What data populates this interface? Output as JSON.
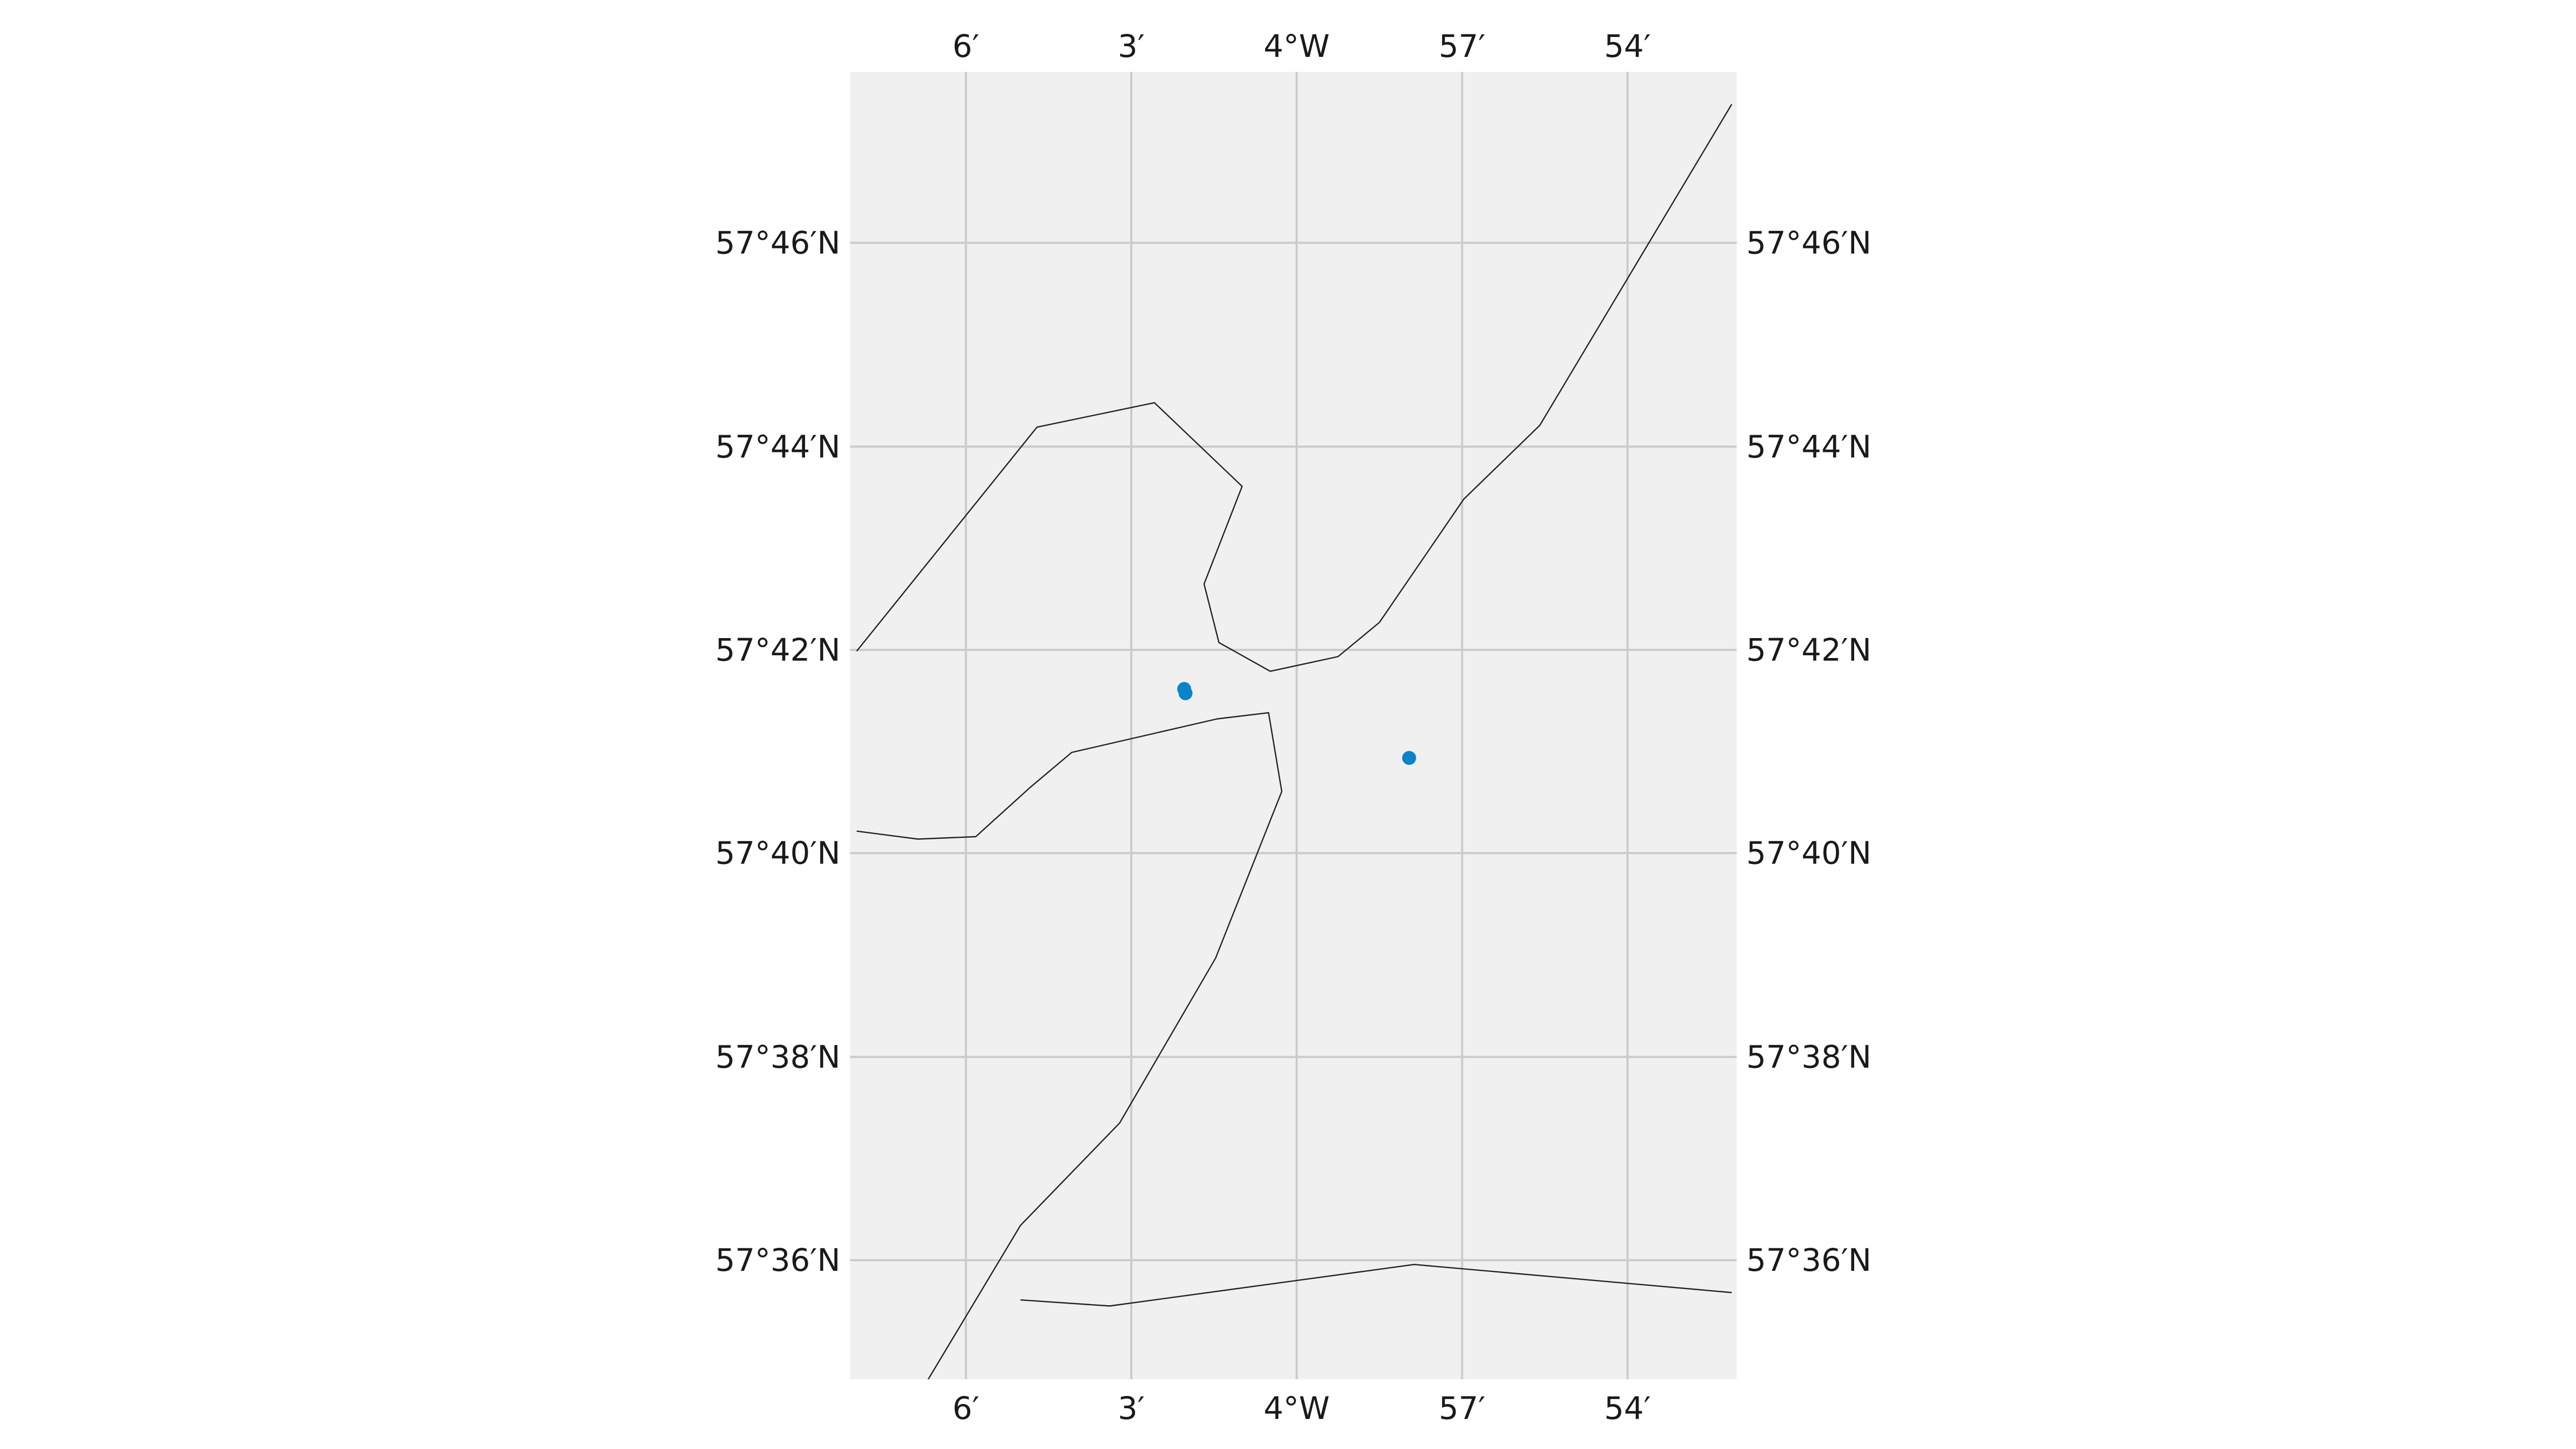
{
  "map": {
    "background_color": "#f0f0f0",
    "grid": true,
    "grid_color": "#cbcbcb",
    "coastline_color": "#222222",
    "point_color": "#0a84c8",
    "lon_ticks": [
      {
        "value": -4.1,
        "label": "6′"
      },
      {
        "value": -4.05,
        "label": "3′"
      },
      {
        "value": -4.0,
        "label": "4°W"
      },
      {
        "value": -3.95,
        "label": "57′"
      },
      {
        "value": -3.9,
        "label": "54′"
      }
    ],
    "lat_ticks": [
      {
        "value": 57.7667,
        "label": "57°46′N"
      },
      {
        "value": 57.7333,
        "label": "57°44′N"
      },
      {
        "value": 57.7,
        "label": "57°42′N"
      },
      {
        "value": 57.6667,
        "label": "57°40′N"
      },
      {
        "value": 57.6333,
        "label": "57°38′N"
      },
      {
        "value": 57.6,
        "label": "57°36′N"
      }
    ],
    "extent": {
      "lon_min": -4.135,
      "lon_max": -3.867,
      "lat_min": 57.5805,
      "lat_max": 57.7947
    },
    "points": [
      {
        "lon": -4.034,
        "lat": 57.6936
      },
      {
        "lon": -4.0336,
        "lat": 57.6929
      },
      {
        "lon": -3.966,
        "lat": 57.6823
      }
    ],
    "coastlines": [
      [
        [
          -4.133,
          57.6998
        ],
        [
          -4.0785,
          57.7365
        ],
        [
          -4.043,
          57.7405
        ],
        [
          -4.0165,
          57.7268
        ],
        [
          -4.028,
          57.7108
        ],
        [
          -4.0235,
          57.7012
        ],
        [
          -4.008,
          57.6965
        ],
        [
          -3.9875,
          57.6989
        ],
        [
          -3.975,
          57.7045
        ],
        [
          -3.9495,
          57.7247
        ],
        [
          -3.9265,
          57.7368
        ],
        [
          -3.8685,
          57.7894
        ]
      ],
      [
        [
          -4.133,
          57.6703
        ],
        [
          -4.1145,
          57.669
        ],
        [
          -4.097,
          57.6694
        ],
        [
          -4.0805,
          57.6775
        ],
        [
          -4.068,
          57.6832
        ],
        [
          -4.024,
          57.6887
        ],
        [
          -4.0085,
          57.6897
        ],
        [
          -4.0045,
          57.6768
        ],
        [
          -4.0245,
          57.6495
        ],
        [
          -4.0535,
          57.6225
        ],
        [
          -4.0835,
          57.6057
        ],
        [
          -4.118,
          57.5745
        ],
        [
          -4.1145,
          57.5705
        ],
        [
          -4.1065,
          57.5605
        ]
      ],
      [
        [
          -4.0835,
          57.5935
        ],
        [
          -4.0565,
          57.5925
        ],
        [
          -3.9645,
          57.5993
        ],
        [
          -3.8685,
          57.5947
        ]
      ]
    ]
  }
}
